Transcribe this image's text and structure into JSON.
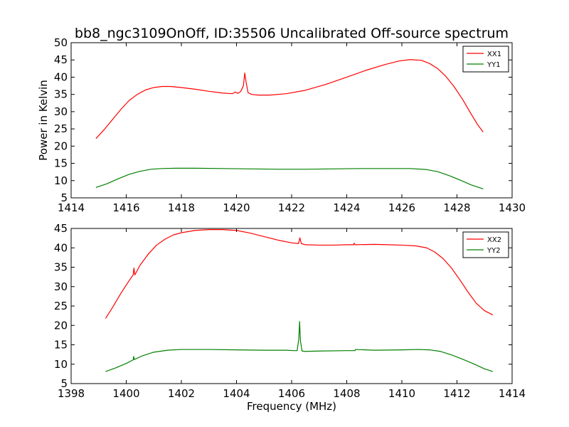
{
  "title": "bb8_ngc3109OnOff, ID:35506 Uncalibrated Off-source spectrum",
  "chart_data": [
    {
      "type": "line",
      "ylabel": "Power in Kelvin",
      "xlabel": "",
      "xlim": [
        1414,
        1430
      ],
      "ylim": [
        5,
        50
      ],
      "xticks": [
        1414,
        1416,
        1418,
        1420,
        1422,
        1424,
        1426,
        1428,
        1430
      ],
      "yticks": [
        5,
        10,
        15,
        20,
        25,
        30,
        35,
        40,
        45,
        50
      ],
      "legend": "top-right",
      "grid": false,
      "series": [
        {
          "name": "XX1",
          "color": "#ff0000",
          "x": [
            1414.9,
            1415.2,
            1415.5,
            1415.8,
            1416.1,
            1416.4,
            1416.7,
            1417.0,
            1417.3,
            1417.6,
            1418.0,
            1418.5,
            1419.0,
            1419.5,
            1419.85,
            1419.95,
            1420.05,
            1420.15,
            1420.25,
            1420.3,
            1420.35,
            1420.42,
            1420.55,
            1420.8,
            1421.2,
            1421.8,
            1422.5,
            1423.2,
            1424.0,
            1424.7,
            1425.4,
            1425.9,
            1426.3,
            1426.7,
            1427.0,
            1427.3,
            1427.6,
            1427.9,
            1428.2,
            1428.5,
            1428.75,
            1428.95
          ],
          "y": [
            22.2,
            24.8,
            27.7,
            30.6,
            33.2,
            35.0,
            36.3,
            37.0,
            37.3,
            37.3,
            37.0,
            36.5,
            35.9,
            35.4,
            35.2,
            35.7,
            35.3,
            35.8,
            37.5,
            41.2,
            38.5,
            35.5,
            35.0,
            34.8,
            34.8,
            35.2,
            36.2,
            37.8,
            40.0,
            42.0,
            43.7,
            44.7,
            45.1,
            44.9,
            44.0,
            42.5,
            40.2,
            37.2,
            33.6,
            29.5,
            26.2,
            24.1
          ]
        },
        {
          "name": "YY1",
          "color": "#008000",
          "x": [
            1414.9,
            1415.3,
            1415.7,
            1416.1,
            1416.5,
            1416.9,
            1417.3,
            1417.8,
            1418.5,
            1419.5,
            1420.5,
            1421.5,
            1422.5,
            1423.5,
            1424.5,
            1425.5,
            1426.3,
            1426.9,
            1427.3,
            1427.7,
            1428.1,
            1428.5,
            1428.95
          ],
          "y": [
            8.0,
            9.1,
            10.5,
            11.8,
            12.7,
            13.3,
            13.5,
            13.6,
            13.6,
            13.5,
            13.4,
            13.3,
            13.3,
            13.4,
            13.5,
            13.5,
            13.5,
            13.2,
            12.6,
            11.5,
            10.2,
            8.8,
            7.6
          ]
        }
      ]
    },
    {
      "type": "line",
      "ylabel": "",
      "xlabel": "Frequency (MHz)",
      "xlim": [
        1398,
        1414
      ],
      "ylim": [
        5,
        45
      ],
      "xticks": [
        1398,
        1400,
        1402,
        1404,
        1406,
        1408,
        1410,
        1412,
        1414
      ],
      "yticks": [
        5,
        10,
        15,
        20,
        25,
        30,
        35,
        40,
        45
      ],
      "legend": "top-right",
      "grid": false,
      "series": [
        {
          "name": "XX2",
          "color": "#ff0000",
          "x": [
            1399.25,
            1399.5,
            1399.8,
            1400.1,
            1400.25,
            1400.28,
            1400.31,
            1400.5,
            1400.8,
            1401.1,
            1401.4,
            1401.7,
            1402.0,
            1402.5,
            1403.0,
            1403.5,
            1404.0,
            1404.5,
            1405.0,
            1405.5,
            1406.0,
            1406.25,
            1406.3,
            1406.35,
            1406.5,
            1407.0,
            1407.5,
            1408.0,
            1408.25,
            1408.27,
            1408.3,
            1409.0,
            1409.5,
            1410.0,
            1410.5,
            1410.9,
            1411.2,
            1411.5,
            1411.8,
            1412.1,
            1412.4,
            1412.7,
            1413.0,
            1413.3
          ],
          "y": [
            21.8,
            24.6,
            28.2,
            31.5,
            33.0,
            34.8,
            33.0,
            35.5,
            38.4,
            40.7,
            42.2,
            43.3,
            43.9,
            44.5,
            44.7,
            44.7,
            44.5,
            43.8,
            42.9,
            42.0,
            41.3,
            41.1,
            42.6,
            41.1,
            40.8,
            40.7,
            40.7,
            40.8,
            40.8,
            41.2,
            40.8,
            40.9,
            40.8,
            40.7,
            40.5,
            40.0,
            38.9,
            37.2,
            34.8,
            31.8,
            28.6,
            25.7,
            23.8,
            22.7
          ]
        },
        {
          "name": "YY2",
          "color": "#008000",
          "x": [
            1399.25,
            1399.6,
            1400.0,
            1400.25,
            1400.27,
            1400.29,
            1400.6,
            1401.0,
            1401.5,
            1402.0,
            1403.0,
            1404.0,
            1405.0,
            1405.8,
            1406.1,
            1406.2,
            1406.26,
            1406.29,
            1406.32,
            1406.38,
            1406.5,
            1407.0,
            1408.0,
            1408.3,
            1408.32,
            1409.0,
            1410.0,
            1410.6,
            1411.0,
            1411.4,
            1411.8,
            1412.2,
            1412.6,
            1413.0,
            1413.3
          ],
          "y": [
            8.1,
            9.0,
            10.2,
            11.1,
            12.0,
            11.2,
            12.2,
            13.1,
            13.6,
            13.8,
            13.8,
            13.7,
            13.6,
            13.6,
            13.5,
            13.5,
            16.5,
            21.0,
            16.0,
            13.4,
            13.3,
            13.4,
            13.5,
            13.5,
            13.8,
            13.6,
            13.7,
            13.8,
            13.7,
            13.3,
            12.4,
            11.3,
            10.1,
            8.8,
            8.1
          ]
        }
      ]
    }
  ]
}
